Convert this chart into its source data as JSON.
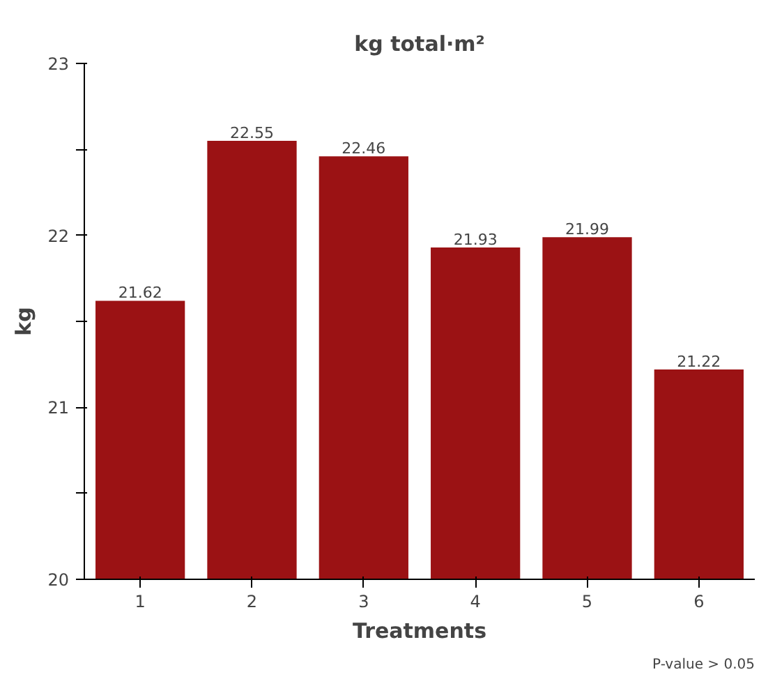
{
  "chart_data": {
    "type": "bar",
    "title": "kg total·m²",
    "xlabel": "Treatments",
    "ylabel": "kg",
    "categories": [
      "1",
      "2",
      "3",
      "4",
      "5",
      "6"
    ],
    "values": [
      21.62,
      22.55,
      22.46,
      21.93,
      21.99,
      21.22
    ],
    "color": "#9b1214",
    "data_labels": true,
    "ylim": [
      20,
      23
    ],
    "yticks": [
      20,
      {
        "value": 20.5,
        "label": null
      },
      21,
      {
        "value": 21.5,
        "label": null
      },
      22,
      {
        "value": 22.5,
        "label": null
      },
      23
    ],
    "grid": false,
    "annotations": [
      "P-value > 0.05"
    ]
  }
}
